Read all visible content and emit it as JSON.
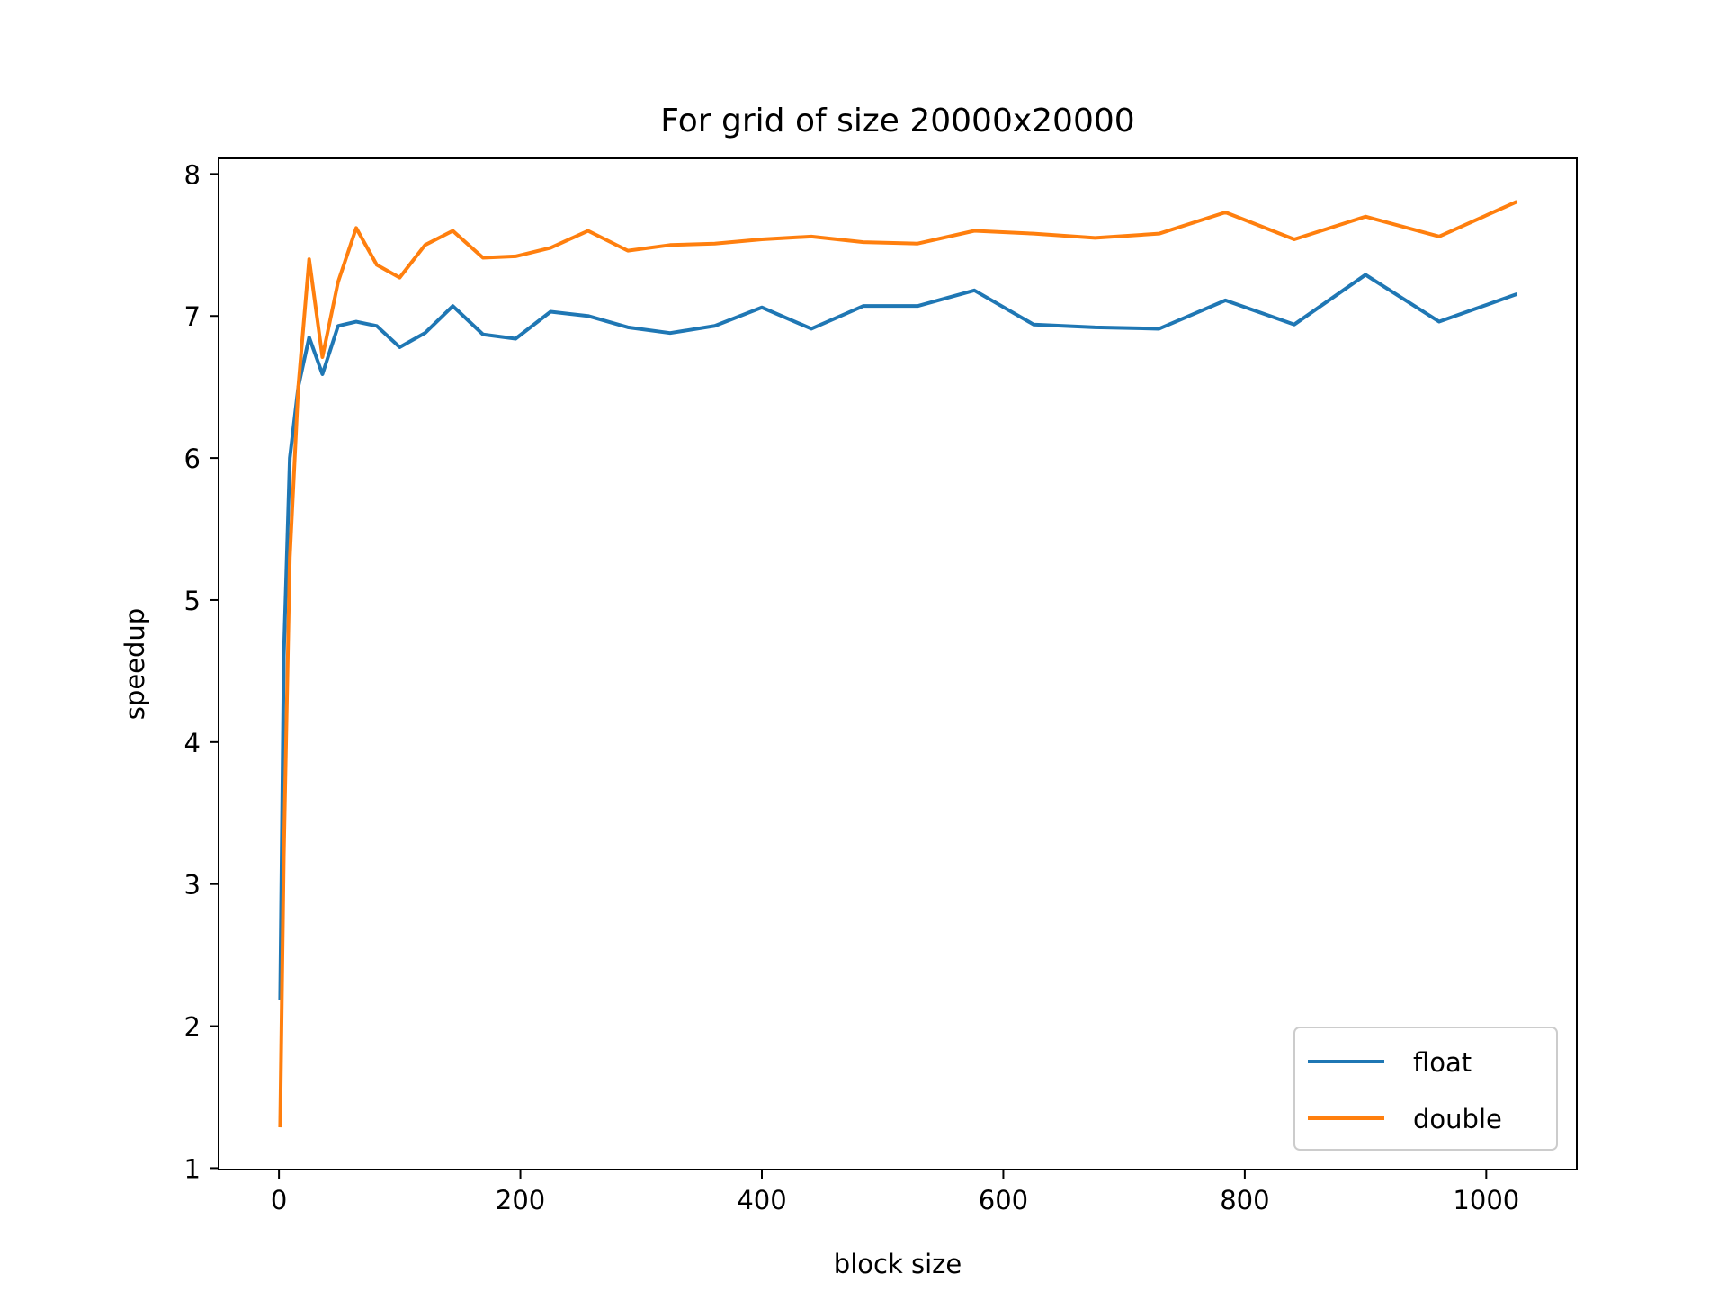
{
  "chart_data": {
    "type": "line",
    "title": "For grid of size 20000x20000",
    "xlabel": "block size",
    "ylabel": "speedup",
    "xlim": [
      -50,
      1075
    ],
    "ylim": [
      0.99,
      8.11
    ],
    "xticks": [
      0,
      200,
      400,
      600,
      800,
      1000
    ],
    "yticks": [
      1,
      2,
      3,
      4,
      5,
      6,
      7,
      8
    ],
    "grid": false,
    "legend_position": "lower-right",
    "series": [
      {
        "name": "float",
        "color": "#1f77b4",
        "points": [
          [
            1,
            2.2
          ],
          [
            4,
            4.6
          ],
          [
            9,
            6.0
          ],
          [
            16,
            6.5
          ],
          [
            25,
            6.85
          ],
          [
            36,
            6.59
          ],
          [
            49,
            6.93
          ],
          [
            64,
            6.96
          ],
          [
            81,
            6.93
          ],
          [
            100,
            6.78
          ],
          [
            121,
            6.88
          ],
          [
            144,
            7.07
          ],
          [
            169,
            6.87
          ],
          [
            196,
            6.84
          ],
          [
            225,
            7.03
          ],
          [
            256,
            7.0
          ],
          [
            289,
            6.92
          ],
          [
            324,
            6.88
          ],
          [
            361,
            6.93
          ],
          [
            400,
            7.06
          ],
          [
            441,
            6.91
          ],
          [
            484,
            7.07
          ],
          [
            529,
            7.07
          ],
          [
            576,
            7.18
          ],
          [
            625,
            6.94
          ],
          [
            676,
            6.92
          ],
          [
            729,
            6.91
          ],
          [
            784,
            7.11
          ],
          [
            841,
            6.94
          ],
          [
            900,
            7.29
          ],
          [
            961,
            6.96
          ],
          [
            1024,
            7.15
          ]
        ]
      },
      {
        "name": "double",
        "color": "#ff7f0e",
        "points": [
          [
            1,
            1.3
          ],
          [
            4,
            3.2
          ],
          [
            9,
            5.3
          ],
          [
            16,
            6.5
          ],
          [
            25,
            7.4
          ],
          [
            36,
            6.71
          ],
          [
            49,
            7.24
          ],
          [
            64,
            7.62
          ],
          [
            81,
            7.36
          ],
          [
            100,
            7.27
          ],
          [
            121,
            7.5
          ],
          [
            144,
            7.6
          ],
          [
            169,
            7.41
          ],
          [
            196,
            7.42
          ],
          [
            225,
            7.48
          ],
          [
            256,
            7.6
          ],
          [
            289,
            7.46
          ],
          [
            324,
            7.5
          ],
          [
            361,
            7.51
          ],
          [
            400,
            7.54
          ],
          [
            441,
            7.56
          ],
          [
            484,
            7.52
          ],
          [
            529,
            7.51
          ],
          [
            576,
            7.6
          ],
          [
            625,
            7.58
          ],
          [
            676,
            7.55
          ],
          [
            729,
            7.58
          ],
          [
            784,
            7.73
          ],
          [
            841,
            7.54
          ],
          [
            900,
            7.7
          ],
          [
            961,
            7.56
          ],
          [
            1024,
            7.8
          ]
        ]
      }
    ]
  }
}
